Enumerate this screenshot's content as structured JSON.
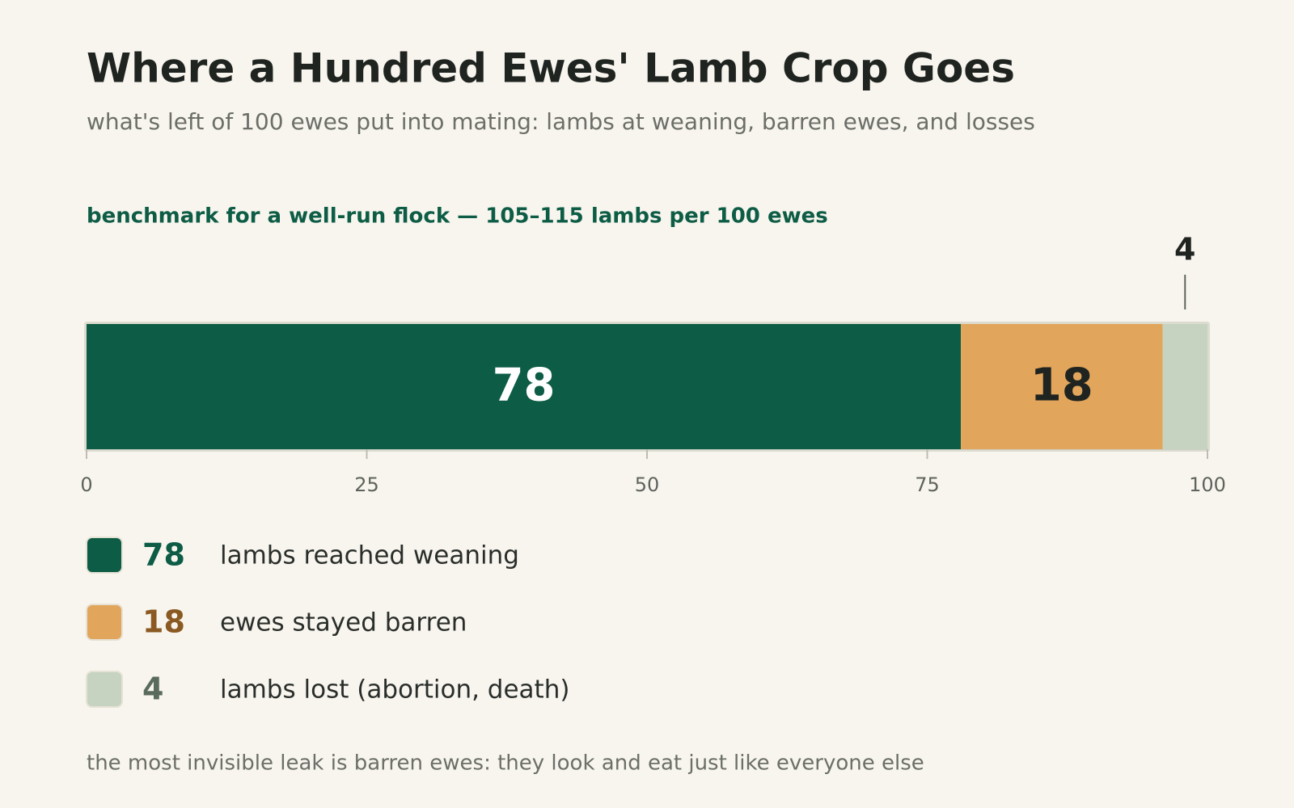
{
  "chart_data": {
    "type": "bar",
    "orientation": "horizontal",
    "stacked": true,
    "title": "Where a Hundred Ewes' Lamb Crop Goes",
    "subtitle": "what's left of 100 ewes put into mating: lambs at weaning, barren ewes, and losses",
    "annotation": "benchmark for a well-run flock — 105–115 lambs per 100 ewes",
    "note": "the most invisible leak is barren ewes: they look and eat just like everyone else",
    "series": [
      {
        "name": "lambs reached weaning",
        "color": "#0d5c45",
        "values": [
          78
        ]
      },
      {
        "name": "ewes stayed barren",
        "color": "#e2a55c",
        "values": [
          18
        ]
      },
      {
        "name": "lambs lost (abortion, death)",
        "color": "#c5d3c0",
        "values": [
          4
        ]
      }
    ],
    "xlim": [
      0,
      100
    ],
    "xticks": [
      0,
      25,
      50,
      75,
      100
    ]
  }
}
